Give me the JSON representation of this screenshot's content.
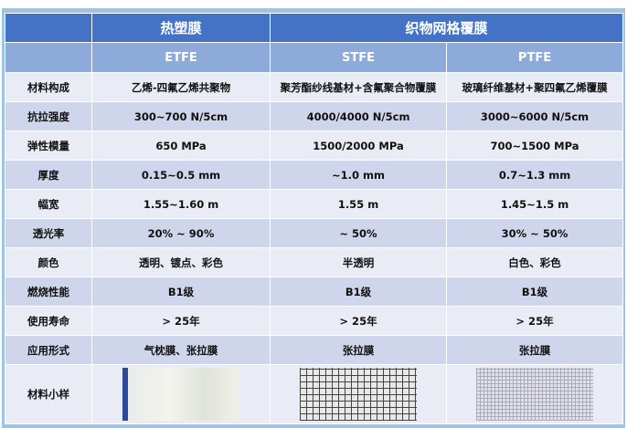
{
  "header": {
    "group1": "热塑膜",
    "group2": "织物网格覆膜",
    "types": [
      "ETFE",
      "STFE",
      "PTFE"
    ]
  },
  "rows": [
    {
      "label": "材料构成",
      "values": [
        "乙烯-四氟乙烯共聚物",
        "聚芳酯纱线基材+含氟聚合物覆膜",
        "玻璃纤维基材+聚四氟乙烯覆膜"
      ]
    },
    {
      "label": "抗拉强度",
      "values": [
        "300~700 N/5cm",
        "4000/4000 N/5cm",
        "3000~6000 N/5cm"
      ]
    },
    {
      "label": "弹性模量",
      "values": [
        "650 MPa",
        "1500/2000  MPa",
        "700~1500  MPa"
      ]
    },
    {
      "label": "厚度",
      "values": [
        "0.15~0.5 mm",
        "~1.0 mm",
        "0.7~1.3 mm"
      ]
    },
    {
      "label": "幅宽",
      "values": [
        "1.55~1.60 m",
        "1.55 m",
        "1.45~1.5 m"
      ]
    },
    {
      "label": "透光率",
      "values": [
        "20% ~ 90%",
        "~ 50%",
        "30% ~ 50%"
      ]
    },
    {
      "label": "颜色",
      "values": [
        "透明、镀点、彩色",
        "半透明",
        "白色、彩色"
      ]
    },
    {
      "label": "燃烧性能",
      "values": [
        "B1级",
        "B1级",
        "B1级"
      ]
    },
    {
      "label": "使用寿命",
      "values": [
        "> 25年",
        "> 25年",
        "> 25年"
      ]
    },
    {
      "label": "应用形式",
      "values": [
        "气枕膜、张拉膜",
        "张拉膜",
        "张拉膜"
      ]
    }
  ],
  "sample_label": "材料小样",
  "colors": {
    "header": "#4472c4",
    "subheader": "#8eaadb",
    "row_dark": "#cfd5ea",
    "row_light": "#e9ebf5",
    "frame": "#9dc3e6"
  }
}
